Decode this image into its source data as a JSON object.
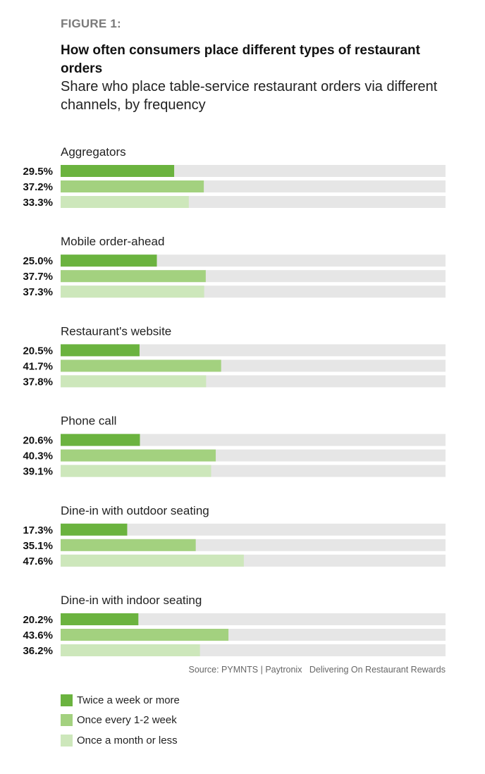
{
  "figure_label": "FIGURE 1:",
  "source": "Source: PYMNTS | Paytronix   Delivering On Restaurant Rewards",
  "chart_data": {
    "type": "bar",
    "orientation": "horizontal",
    "title": "How often consumers place different types of restaurant orders",
    "subtitle": "Share who place table-service restaurant orders via different channels, by frequency",
    "categories": [
      "Aggregators",
      "Mobile order-ahead",
      "Restaurant's website",
      "Phone call",
      "Dine-in with outdoor seating",
      "Dine-in with indoor seating"
    ],
    "series": [
      {
        "name": "Twice a week or more",
        "color": "#6bb33f",
        "values": [
          29.5,
          25.0,
          20.5,
          20.6,
          17.3,
          20.2
        ]
      },
      {
        "name": "Once every 1-2 week",
        "color": "#a3d17f",
        "values": [
          37.2,
          37.7,
          41.7,
          40.3,
          35.1,
          43.6
        ]
      },
      {
        "name": "Once a month or less",
        "color": "#cde7bb",
        "values": [
          33.3,
          37.3,
          37.8,
          39.1,
          47.6,
          36.2
        ]
      }
    ],
    "value_labels": [
      [
        "29.5%",
        "37.2%",
        "33.3%"
      ],
      [
        "25.0%",
        "37.7%",
        "37.3%"
      ],
      [
        "20.5%",
        "41.7%",
        "37.8%"
      ],
      [
        "20.6%",
        "40.3%",
        "39.1%"
      ],
      [
        "17.3%",
        "35.1%",
        "47.6%"
      ],
      [
        "20.2%",
        "43.6%",
        "36.2%"
      ]
    ],
    "xlim": [
      0,
      100
    ],
    "track_color": "#e6e6e6",
    "legend_position": "bottom-left"
  }
}
